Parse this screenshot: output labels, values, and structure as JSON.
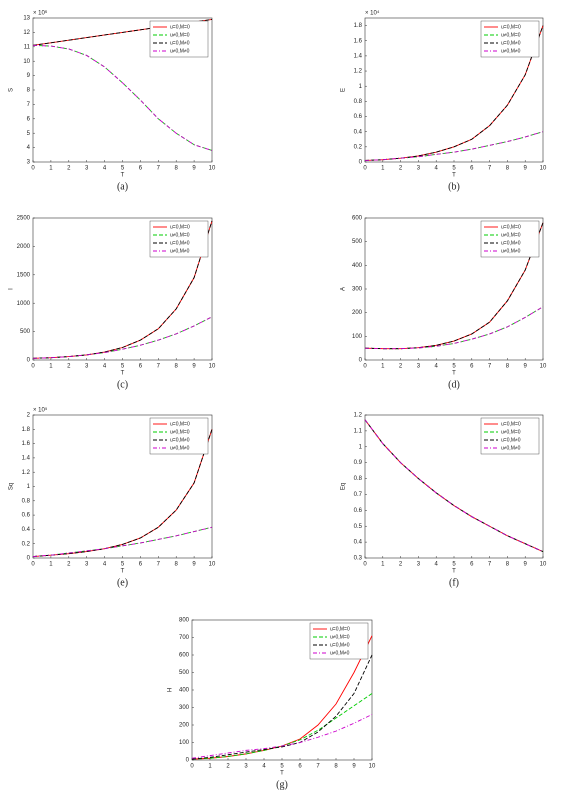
{
  "chart_data": [
    {
      "type": "line",
      "caption": "(a)",
      "xlabel": "T",
      "ylabel": "S",
      "y_exponent": "× 10⁶",
      "legend": "upper right",
      "x": [
        0,
        1,
        2,
        3,
        4,
        5,
        6,
        7,
        8,
        9,
        10
      ],
      "xlim": [
        0,
        10
      ],
      "xticks": [
        0,
        1,
        2,
        3,
        4,
        5,
        6,
        7,
        8,
        9,
        10
      ],
      "ylim": [
        3,
        13
      ],
      "yticks": [
        3,
        4,
        5,
        6,
        7,
        8,
        9,
        10,
        11,
        12,
        13
      ],
      "series": [
        {
          "name": "u=0,M=0",
          "color": "#ff0000",
          "linestyle": "solid",
          "values": [
            11.1,
            11.28,
            11.46,
            11.64,
            11.82,
            12.0,
            12.18,
            12.36,
            12.54,
            12.72,
            12.9
          ]
        },
        {
          "name": "u≠0,M=0",
          "color": "#00cc00",
          "linestyle": "dashed",
          "values": [
            11.1,
            11.05,
            10.85,
            10.4,
            9.6,
            8.5,
            7.3,
            6.0,
            5.0,
            4.2,
            3.8
          ]
        },
        {
          "name": "u=0,M≠0",
          "color": "#000000",
          "linestyle": "dashed",
          "values": [
            11.1,
            11.28,
            11.46,
            11.64,
            11.82,
            12.0,
            12.18,
            12.36,
            12.54,
            12.72,
            12.9
          ]
        },
        {
          "name": "u≠0,M≠0",
          "color": "#cc00cc",
          "linestyle": "dashdot",
          "values": [
            11.1,
            11.05,
            10.85,
            10.4,
            9.6,
            8.5,
            7.3,
            6.0,
            5.0,
            4.2,
            3.8
          ]
        }
      ]
    },
    {
      "type": "line",
      "caption": "(b)",
      "xlabel": "T",
      "ylabel": "E",
      "y_exponent": "× 10⁴",
      "legend": "upper right",
      "x": [
        0,
        1,
        2,
        3,
        4,
        5,
        6,
        7,
        8,
        9,
        10
      ],
      "xlim": [
        0,
        10
      ],
      "xticks": [
        0,
        1,
        2,
        3,
        4,
        5,
        6,
        7,
        8,
        9,
        10
      ],
      "ylim": [
        0,
        1.9
      ],
      "yticks": [
        0,
        0.2,
        0.4,
        0.6,
        0.8,
        1,
        1.2,
        1.4,
        1.6,
        1.8
      ],
      "series": [
        {
          "name": "u=0,M=0",
          "color": "#ff0000",
          "linestyle": "solid",
          "values": [
            0.02,
            0.03,
            0.05,
            0.08,
            0.13,
            0.2,
            0.3,
            0.48,
            0.75,
            1.15,
            1.8
          ]
        },
        {
          "name": "u≠0,M=0",
          "color": "#00cc00",
          "linestyle": "dashed",
          "values": [
            0.02,
            0.03,
            0.05,
            0.07,
            0.1,
            0.13,
            0.17,
            0.22,
            0.27,
            0.33,
            0.4
          ]
        },
        {
          "name": "u=0,M≠0",
          "color": "#000000",
          "linestyle": "dashed",
          "values": [
            0.02,
            0.03,
            0.05,
            0.08,
            0.13,
            0.2,
            0.3,
            0.48,
            0.75,
            1.15,
            1.8
          ]
        },
        {
          "name": "u≠0,M≠0",
          "color": "#cc00cc",
          "linestyle": "dashdot",
          "values": [
            0.02,
            0.03,
            0.05,
            0.07,
            0.1,
            0.13,
            0.17,
            0.22,
            0.27,
            0.33,
            0.4
          ]
        }
      ]
    },
    {
      "type": "line",
      "caption": "(c)",
      "xlabel": "T",
      "ylabel": "I",
      "legend": "upper right",
      "x": [
        0,
        1,
        2,
        3,
        4,
        5,
        6,
        7,
        8,
        9,
        10
      ],
      "xlim": [
        0,
        10
      ],
      "xticks": [
        0,
        1,
        2,
        3,
        4,
        5,
        6,
        7,
        8,
        9,
        10
      ],
      "ylim": [
        0,
        2500
      ],
      "yticks": [
        0,
        500,
        1000,
        1500,
        2000,
        2500
      ],
      "series": [
        {
          "name": "u=0,M=0",
          "color": "#ff0000",
          "linestyle": "solid",
          "values": [
            30,
            40,
            60,
            90,
            140,
            220,
            350,
            550,
            900,
            1450,
            2450
          ]
        },
        {
          "name": "u≠0,M=0",
          "color": "#00cc00",
          "linestyle": "dashed",
          "values": [
            30,
            40,
            60,
            90,
            130,
            190,
            260,
            350,
            460,
            600,
            760
          ]
        },
        {
          "name": "u=0,M≠0",
          "color": "#000000",
          "linestyle": "dashed",
          "values": [
            30,
            40,
            60,
            90,
            140,
            220,
            350,
            550,
            900,
            1450,
            2450
          ]
        },
        {
          "name": "u≠0,M≠0",
          "color": "#cc00cc",
          "linestyle": "dashdot",
          "values": [
            30,
            40,
            60,
            90,
            130,
            190,
            260,
            350,
            460,
            600,
            760
          ]
        }
      ]
    },
    {
      "type": "line",
      "caption": "(d)",
      "xlabel": "T",
      "ylabel": "A",
      "legend": "upper right",
      "x": [
        0,
        1,
        2,
        3,
        4,
        5,
        6,
        7,
        8,
        9,
        10
      ],
      "xlim": [
        0,
        10
      ],
      "xticks": [
        0,
        1,
        2,
        3,
        4,
        5,
        6,
        7,
        8,
        9,
        10
      ],
      "ylim": [
        0,
        600
      ],
      "yticks": [
        0,
        100,
        200,
        300,
        400,
        500,
        600
      ],
      "series": [
        {
          "name": "u=0,M=0",
          "color": "#ff0000",
          "linestyle": "solid",
          "values": [
            50,
            48,
            48,
            52,
            62,
            80,
            110,
            160,
            250,
            380,
            580
          ]
        },
        {
          "name": "u≠0,M=0",
          "color": "#00cc00",
          "linestyle": "dashed",
          "values": [
            50,
            48,
            48,
            51,
            58,
            70,
            88,
            110,
            140,
            180,
            225
          ]
        },
        {
          "name": "u=0,M≠0",
          "color": "#000000",
          "linestyle": "dashed",
          "values": [
            50,
            48,
            48,
            52,
            62,
            80,
            110,
            160,
            250,
            380,
            580
          ]
        },
        {
          "name": "u≠0,M≠0",
          "color": "#cc00cc",
          "linestyle": "dashdot",
          "values": [
            50,
            48,
            48,
            51,
            58,
            70,
            88,
            110,
            140,
            180,
            225
          ]
        }
      ]
    },
    {
      "type": "line",
      "caption": "(e)",
      "xlabel": "T",
      "ylabel": "Sq",
      "y_exponent": "× 10⁵",
      "legend": "upper right",
      "x": [
        0,
        1,
        2,
        3,
        4,
        5,
        6,
        7,
        8,
        9,
        10
      ],
      "xlim": [
        0,
        10
      ],
      "xticks": [
        0,
        1,
        2,
        3,
        4,
        5,
        6,
        7,
        8,
        9,
        10
      ],
      "ylim": [
        0,
        2
      ],
      "yticks": [
        0,
        0.2,
        0.4,
        0.6,
        0.8,
        1,
        1.2,
        1.4,
        1.6,
        1.8,
        2
      ],
      "series": [
        {
          "name": "u=0,M=0",
          "color": "#ff0000",
          "linestyle": "solid",
          "values": [
            0.02,
            0.04,
            0.06,
            0.09,
            0.13,
            0.19,
            0.28,
            0.43,
            0.67,
            1.05,
            1.8
          ]
        },
        {
          "name": "u≠0,M=0",
          "color": "#00cc00",
          "linestyle": "dashed",
          "values": [
            0.02,
            0.04,
            0.07,
            0.1,
            0.13,
            0.17,
            0.21,
            0.26,
            0.31,
            0.37,
            0.43
          ]
        },
        {
          "name": "u=0,M≠0",
          "color": "#000000",
          "linestyle": "dashed",
          "values": [
            0.02,
            0.04,
            0.06,
            0.09,
            0.13,
            0.19,
            0.28,
            0.43,
            0.67,
            1.05,
            1.8
          ]
        },
        {
          "name": "u≠0,M≠0",
          "color": "#cc00cc",
          "linestyle": "dashdot",
          "values": [
            0.02,
            0.04,
            0.07,
            0.1,
            0.13,
            0.17,
            0.21,
            0.26,
            0.31,
            0.37,
            0.43
          ]
        }
      ]
    },
    {
      "type": "line",
      "caption": "(f)",
      "xlabel": "T",
      "ylabel": "Eq",
      "legend": "upper right",
      "x": [
        0,
        1,
        2,
        3,
        4,
        5,
        6,
        7,
        8,
        9,
        10
      ],
      "xlim": [
        0,
        10
      ],
      "xticks": [
        0,
        1,
        2,
        3,
        4,
        5,
        6,
        7,
        8,
        9,
        10
      ],
      "ylim": [
        0.3,
        1.2
      ],
      "yticks": [
        0.3,
        0.4,
        0.5,
        0.6,
        0.7,
        0.8,
        0.9,
        1,
        1.1,
        1.2
      ],
      "series": [
        {
          "name": "u=0,M=0",
          "color": "#ff0000",
          "linestyle": "solid",
          "values": [
            1.17,
            1.02,
            0.9,
            0.8,
            0.71,
            0.63,
            0.56,
            0.5,
            0.44,
            0.39,
            0.34
          ]
        },
        {
          "name": "u≠0,M=0",
          "color": "#00cc00",
          "linestyle": "dashed",
          "values": [
            1.17,
            1.02,
            0.9,
            0.8,
            0.71,
            0.63,
            0.56,
            0.5,
            0.44,
            0.39,
            0.34
          ]
        },
        {
          "name": "u=0,M≠0",
          "color": "#000000",
          "linestyle": "dashed",
          "values": [
            1.17,
            1.02,
            0.9,
            0.8,
            0.71,
            0.63,
            0.56,
            0.5,
            0.44,
            0.39,
            0.34
          ]
        },
        {
          "name": "u≠0,M≠0",
          "color": "#cc00cc",
          "linestyle": "dashdot",
          "values": [
            1.17,
            1.02,
            0.9,
            0.8,
            0.71,
            0.63,
            0.56,
            0.5,
            0.44,
            0.39,
            0.34
          ]
        }
      ]
    },
    {
      "type": "line",
      "caption": "(g)",
      "xlabel": "T",
      "ylabel": "H",
      "legend": "upper right",
      "x": [
        0,
        1,
        2,
        3,
        4,
        5,
        6,
        7,
        8,
        9,
        10
      ],
      "xlim": [
        0,
        10
      ],
      "xticks": [
        0,
        1,
        2,
        3,
        4,
        5,
        6,
        7,
        8,
        9,
        10
      ],
      "ylim": [
        0,
        800
      ],
      "yticks": [
        0,
        100,
        200,
        300,
        400,
        500,
        600,
        700,
        800
      ],
      "series": [
        {
          "name": "u=0,M=0",
          "color": "#ff0000",
          "linestyle": "solid",
          "values": [
            5,
            10,
            20,
            35,
            55,
            80,
            120,
            200,
            320,
            500,
            710
          ]
        },
        {
          "name": "u≠0,M=0",
          "color": "#00cc00",
          "linestyle": "dashed",
          "values": [
            5,
            10,
            20,
            35,
            55,
            80,
            115,
            170,
            240,
            310,
            380
          ]
        },
        {
          "name": "u=0,M≠0",
          "color": "#000000",
          "linestyle": "dashed",
          "values": [
            5,
            15,
            30,
            45,
            60,
            75,
            100,
            160,
            250,
            380,
            600
          ]
        },
        {
          "name": "u≠0,M≠0",
          "color": "#cc00cc",
          "linestyle": "dashdot",
          "values": [
            10,
            25,
            40,
            55,
            65,
            80,
            100,
            130,
            165,
            210,
            260
          ]
        }
      ]
    }
  ]
}
